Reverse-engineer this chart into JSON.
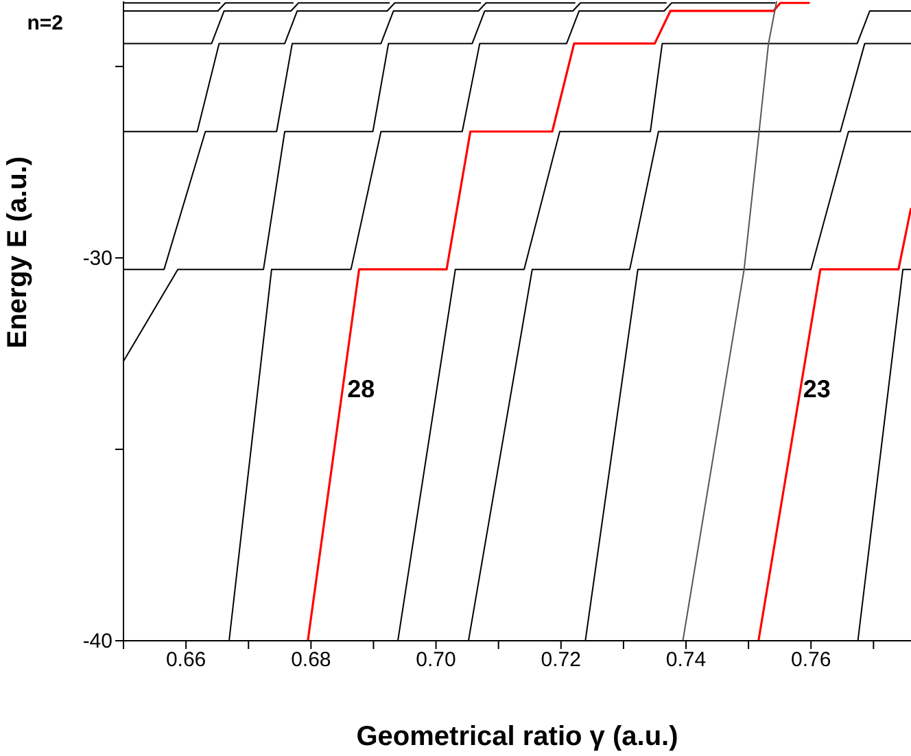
{
  "chart_data": {
    "type": "line",
    "xlabel": "Geometrical ratio γ (a.u.)",
    "ylabel": "Energy E (a.u.)",
    "xlim": [
      0.65,
      0.776
    ],
    "ylim": [
      -40,
      -23.3
    ],
    "xticks": [
      {
        "value": 0.65,
        "label": null
      },
      0.66,
      {
        "value": 0.67,
        "label": null
      },
      0.68,
      {
        "value": 0.69,
        "label": null
      },
      "0.70",
      {
        "value": 0.71,
        "label": null
      },
      0.72,
      {
        "value": 0.73,
        "label": null
      },
      0.74,
      {
        "value": 0.75,
        "label": null
      },
      0.76,
      {
        "value": 0.77,
        "label": null
      }
    ],
    "yticks": [
      -40,
      {
        "value": -35,
        "label": null
      },
      -30,
      {
        "value": -25,
        "label": null
      }
    ],
    "annotations": [
      {
        "text": "n=2",
        "x": 0.65,
        "y": -23.55
      }
    ],
    "grid": false,
    "marker": "none",
    "line_style": "solid",
    "series": [
      {
        "color": "#000000",
        "x": [
          0.65,
          0.6587,
          0.6724,
          0.6758,
          0.6899,
          0.6924,
          0.7058,
          0.7078,
          0.7219,
          0.7231,
          0.7369
        ],
        "values": [
          -32.7,
          -30.3,
          -30.3,
          -26.7,
          -26.7,
          -24.4,
          -24.4,
          -23.55,
          -23.55,
          -23.34,
          -23.34
        ]
      },
      {
        "color": "#000000",
        "x": [
          0.65,
          0.6565,
          0.6631,
          0.6745,
          0.677,
          0.6912,
          0.6932,
          0.7068,
          0.708,
          0.7223
        ],
        "values": [
          -30.3,
          -30.3,
          -26.7,
          -26.7,
          -24.4,
          -24.4,
          -23.55,
          -23.55,
          -23.34,
          -23.34
        ]
      },
      {
        "color": "#000000",
        "x": [
          0.65,
          0.6618,
          0.6653,
          0.6758,
          0.6778,
          0.6922,
          0.6934,
          0.7072
        ],
        "values": [
          -26.7,
          -26.7,
          -24.4,
          -24.4,
          -23.55,
          -23.55,
          -23.34,
          -23.34
        ]
      },
      {
        "color": "#000000",
        "x": [
          0.65,
          0.6641,
          0.6661,
          0.6768,
          0.678,
          0.6926
        ],
        "values": [
          -24.4,
          -24.4,
          -23.55,
          -23.55,
          -23.34,
          -23.34
        ]
      },
      {
        "color": "#000000",
        "x": [
          0.65,
          0.6651,
          0.6663,
          0.6772
        ],
        "values": [
          -23.55,
          -23.55,
          -23.34,
          -23.34
        ]
      },
      {
        "color": "#000000",
        "x": [
          0.65,
          0.6655
        ],
        "values": [
          -23.34,
          -23.34
        ]
      },
      {
        "color": "#000000",
        "x": [
          0.6669,
          0.6737,
          0.6864,
          0.6912,
          0.7042,
          0.707,
          0.7209,
          0.7229,
          0.7365,
          0.7377,
          0.7543
        ],
        "values": [
          -40,
          -30.3,
          -30.3,
          -26.7,
          -26.7,
          -24.4,
          -24.4,
          -23.55,
          -23.55,
          -23.34,
          -23.34
        ]
      },
      {
        "name": "28",
        "color": "#ff0000",
        "x": [
          0.6795,
          0.6877,
          0.7017,
          0.7055,
          0.7186,
          0.7221,
          0.735,
          0.7375,
          0.754,
          0.7551,
          0.7598
        ],
        "values": [
          -40,
          -30.3,
          -30.3,
          -26.7,
          -26.7,
          -24.4,
          -24.4,
          -23.55,
          -23.55,
          -23.34,
          -23.34
        ]
      },
      {
        "color": "#000000",
        "x": [
          0.6939,
          0.7031,
          0.7141,
          0.7198,
          0.7343,
          0.7362,
          0.7674,
          0.7694,
          0.776
        ],
        "values": [
          -40,
          -30.3,
          -30.3,
          -26.7,
          -26.7,
          -24.4,
          -24.4,
          -23.55,
          -23.55
        ]
      },
      {
        "color": "#000000",
        "x": [
          0.7052,
          0.7154,
          0.731,
          0.7356,
          0.7647,
          0.7686,
          0.776
        ],
        "values": [
          -40,
          -30.3,
          -30.3,
          -26.7,
          -26.7,
          -24.4,
          -24.4
        ]
      },
      {
        "color": "#000000",
        "x": [
          0.7239,
          0.7323,
          0.76,
          0.766,
          0.776
        ],
        "values": [
          -40,
          -30.3,
          -30.3,
          -26.7,
          -26.7
        ]
      },
      {
        "color": "#555555",
        "x": [
          0.7395,
          0.7493,
          0.7517,
          0.7532,
          0.7545
        ],
        "values": [
          -40,
          -30.3,
          -26.7,
          -24.4,
          -23.3
        ]
      },
      {
        "name": "23",
        "color": "#ff0000",
        "x": [
          0.7516,
          0.7615,
          0.774,
          0.776
        ],
        "values": [
          -40,
          -30.3,
          -30.3,
          -28.7
        ]
      },
      {
        "color": "#000000",
        "x": [
          0.7675,
          0.7747,
          0.776
        ],
        "values": [
          -40,
          -30.3,
          -30.3
        ]
      }
    ]
  }
}
